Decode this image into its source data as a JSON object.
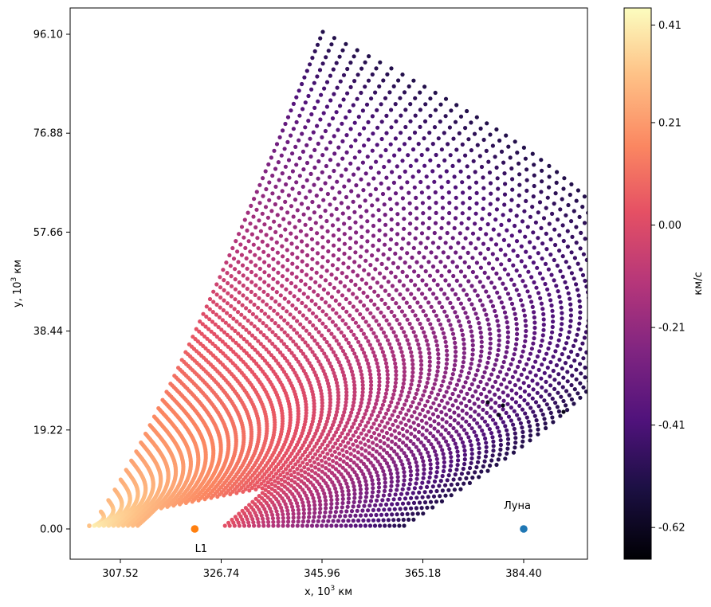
{
  "chart_data": {
    "type": "scatter",
    "title": "",
    "xlabel_main": "x, 10",
    "xlabel_sup": "3",
    "xlabel_unit": " км",
    "ylabel_main": "y, 10",
    "ylabel_sup": "3",
    "ylabel_unit": " км",
    "xticks": [
      "307.52",
      "326.74",
      "345.96",
      "365.18",
      "384.40"
    ],
    "yticks": [
      "0.00",
      "19.22",
      "38.44",
      "57.66",
      "76.88",
      "96.10"
    ],
    "xlim": [
      307.52,
      384.4
    ],
    "ylim": [
      0.0,
      96.1
    ],
    "colorbar": {
      "label": "км/с",
      "ticks": [
        "0.41",
        "0.21",
        "0.00",
        "-0.21",
        "-0.41",
        "-0.62"
      ],
      "tick_values": [
        0.41,
        0.21,
        0.0,
        -0.21,
        -0.41,
        -0.62
      ],
      "colormap": "magma"
    },
    "points": [
      {
        "name": "L1",
        "x": 321.7,
        "y": 0.0,
        "color": "#ff7f0e"
      },
      {
        "name": "Луна",
        "x": 384.4,
        "y": 0.0,
        "color": "#1f77b4"
      }
    ],
    "scatter_description_fields": {
      "x_range": [
        296.0,
        392.0
      ],
      "y_range": [
        -1.0,
        96.5
      ]
    }
  }
}
